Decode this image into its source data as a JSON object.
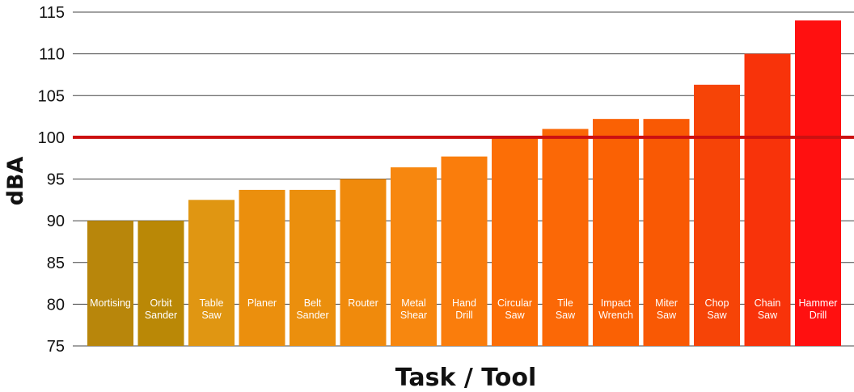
{
  "chart_data": {
    "type": "bar",
    "title": "",
    "xlabel": "Task / Tool",
    "ylabel": "dBA",
    "ylim": [
      75,
      115
    ],
    "yticks": [
      75,
      80,
      85,
      90,
      95,
      100,
      105,
      110,
      115
    ],
    "threshold": 100,
    "categories": [
      [
        "Mortising"
      ],
      [
        "Orbit",
        "Sander"
      ],
      [
        "Table",
        "Saw"
      ],
      [
        "Planer"
      ],
      [
        "Belt",
        "Sander"
      ],
      [
        "Router"
      ],
      [
        "Metal",
        "Shear"
      ],
      [
        "Hand",
        "Drill"
      ],
      [
        "Circular",
        "Saw"
      ],
      [
        "Tile",
        "Saw"
      ],
      [
        "Impact",
        "Wrench"
      ],
      [
        "Miter",
        "Saw"
      ],
      [
        "Chop",
        "Saw"
      ],
      [
        "Chain",
        "Saw"
      ],
      [
        "Hammer",
        "Drill"
      ]
    ],
    "values": [
      90,
      90,
      92.5,
      93.7,
      93.7,
      95,
      96.4,
      97.7,
      100,
      101,
      102.2,
      102.2,
      106.3,
      110,
      114
    ],
    "colors": [
      "#B8860B",
      "#BA8806",
      "#E09612",
      "#EB8F0D",
      "#EB8F0D",
      "#F08A0C",
      "#F7870F",
      "#FA7D0C",
      "#FC6E06",
      "#FB6806",
      "#FA6104",
      "#F95904",
      "#F64407",
      "#F8330A",
      "#FF1010"
    ],
    "threshold_color": "#CC1111"
  }
}
